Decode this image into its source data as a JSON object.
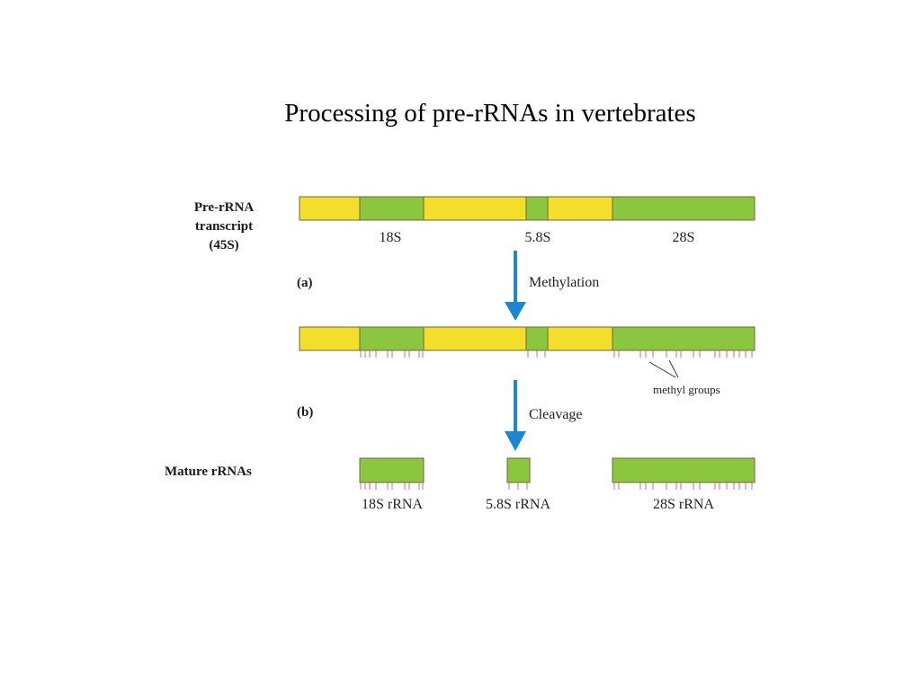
{
  "title": "Processing of pre-rRNAs in vertebrates",
  "labels": {
    "pre_rrna": [
      "Pre-rRNA",
      "transcript",
      "(45S)"
    ],
    "step_a": "(a)",
    "step_b": "(b)",
    "mature": "Mature rRNAs",
    "methylation": "Methylation",
    "cleavage": "Cleavage",
    "methyl_groups": "methyl groups",
    "seg_18s": "18S",
    "seg_58s": "5.8S",
    "seg_28s": "28S",
    "mature_18s": "18S rRNA",
    "mature_58s": "5.8S rRNA",
    "mature_28s": "28S rRNA"
  },
  "colors": {
    "spacer": "#f4de2c",
    "rrna": "#8cc63f",
    "arrow": "#1a87d0",
    "methyl_tick": "#e0609a"
  }
}
